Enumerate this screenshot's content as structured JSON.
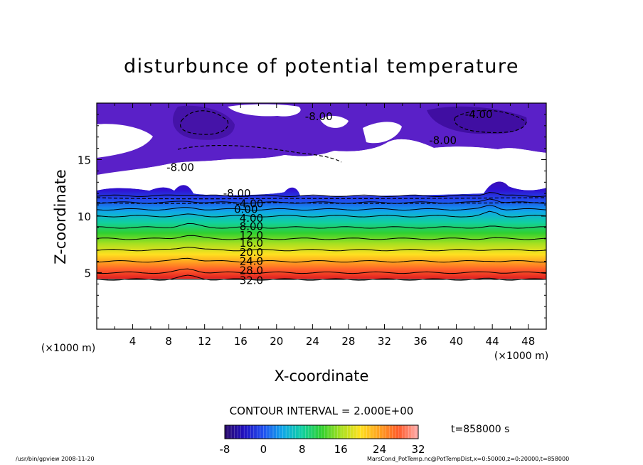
{
  "chart_data": {
    "type": "heatmap",
    "title": "disturbunce of potential temperature",
    "xlabel": "X-coordinate",
    "ylabel": "Z-coordinate",
    "x_unit": "(×1000 m)",
    "z_unit": "(×1000 m)",
    "xlim": [
      0,
      50
    ],
    "ylim": [
      0,
      20
    ],
    "x_ticks": [
      "4",
      "8",
      "12",
      "16",
      "20",
      "24",
      "28",
      "32",
      "36",
      "40",
      "44",
      "48"
    ],
    "y_ticks": [
      "5",
      "10",
      "15"
    ],
    "contour_interval_label": "CONTOUR INTERVAL = 2.000E+00",
    "time_label": "t=858000 s",
    "colorbar_ticks": [
      "-8",
      "0",
      "8",
      "16",
      "24",
      "32"
    ],
    "colorbar_range": [
      -8,
      32
    ],
    "contour_labels": [
      {
        "text": "32.0",
        "x": 17.2,
        "z": 4.3
      },
      {
        "text": "28.0",
        "x": 17.2,
        "z": 5.2
      },
      {
        "text": "24.0",
        "x": 17.2,
        "z": 6.0
      },
      {
        "text": "20.0",
        "x": 17.2,
        "z": 6.8
      },
      {
        "text": "16.0",
        "x": 17.2,
        "z": 7.6
      },
      {
        "text": "12.0",
        "x": 17.2,
        "z": 8.3
      },
      {
        "text": "8.00",
        "x": 17.2,
        "z": 9.1
      },
      {
        "text": "4.00",
        "x": 17.2,
        "z": 9.8
      },
      {
        "text": "0.00",
        "x": 16.6,
        "z": 10.6
      },
      {
        "text": "-4.00",
        "x": 17.0,
        "z": 11.1
      },
      {
        "text": "-8.00",
        "x": 15.6,
        "z": 12.0
      },
      {
        "text": "-8.00",
        "x": 9.3,
        "z": 14.3
      },
      {
        "text": "-8.00",
        "x": 24.7,
        "z": 18.8
      },
      {
        "text": "-8.00",
        "x": 38.5,
        "z": 16.7
      },
      {
        "text": "-4.00",
        "x": 42.5,
        "z": 19.0
      }
    ],
    "z_level_values": {
      "z": [
        0,
        4.4,
        5,
        6,
        7,
        8,
        9,
        10,
        10.6,
        11.2,
        11.8
      ],
      "value": [
        32,
        32,
        28,
        24,
        20,
        16,
        11,
        6,
        2,
        -3,
        -7
      ]
    }
  },
  "footer": {
    "left": "/usr/bin/gpview   2008-11-20",
    "right": "MarsCond_PotTemp.nc@PotTempDist,x=0:50000,z=0:20000,t=858000"
  }
}
